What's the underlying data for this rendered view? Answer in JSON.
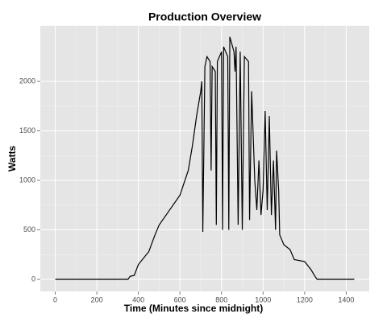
{
  "chart_data": {
    "type": "line",
    "title": "Production Overview",
    "x_label": "Time (Minutes since midnight)",
    "y_label": "Watts",
    "color": "#000000",
    "x": [
      0,
      350,
      360,
      380,
      400,
      450,
      480,
      500,
      550,
      600,
      640,
      660,
      680,
      700,
      705,
      710,
      720,
      730,
      745,
      750,
      755,
      770,
      775,
      780,
      800,
      805,
      810,
      830,
      835,
      840,
      860,
      865,
      870,
      880,
      890,
      900,
      910,
      930,
      935,
      945,
      960,
      970,
      980,
      990,
      1000,
      1010,
      1020,
      1030,
      1040,
      1050,
      1060,
      1065,
      1075,
      1080,
      1100,
      1130,
      1150,
      1200,
      1230,
      1250,
      1260,
      1439
    ],
    "values": [
      0,
      0,
      30,
      40,
      150,
      280,
      450,
      550,
      700,
      850,
      1100,
      1350,
      1650,
      1900,
      2000,
      480,
      2150,
      2250,
      2200,
      1100,
      2150,
      2100,
      550,
      2200,
      2300,
      500,
      2350,
      2250,
      500,
      2450,
      2300,
      2100,
      2350,
      550,
      2300,
      500,
      2250,
      2200,
      600,
      1900,
      1000,
      700,
      1200,
      650,
      900,
      1700,
      700,
      1650,
      650,
      1200,
      500,
      1300,
      900,
      450,
      350,
      300,
      200,
      180,
      100,
      30,
      0,
      0
    ],
    "xlim": [
      -72,
      1511
    ],
    "ylim": [
      -122,
      2562
    ],
    "xticks": [
      0,
      200,
      400,
      600,
      800,
      1000,
      1200,
      1400
    ],
    "yticks": [
      0,
      500,
      1000,
      1500,
      2000
    ],
    "grid": true
  }
}
